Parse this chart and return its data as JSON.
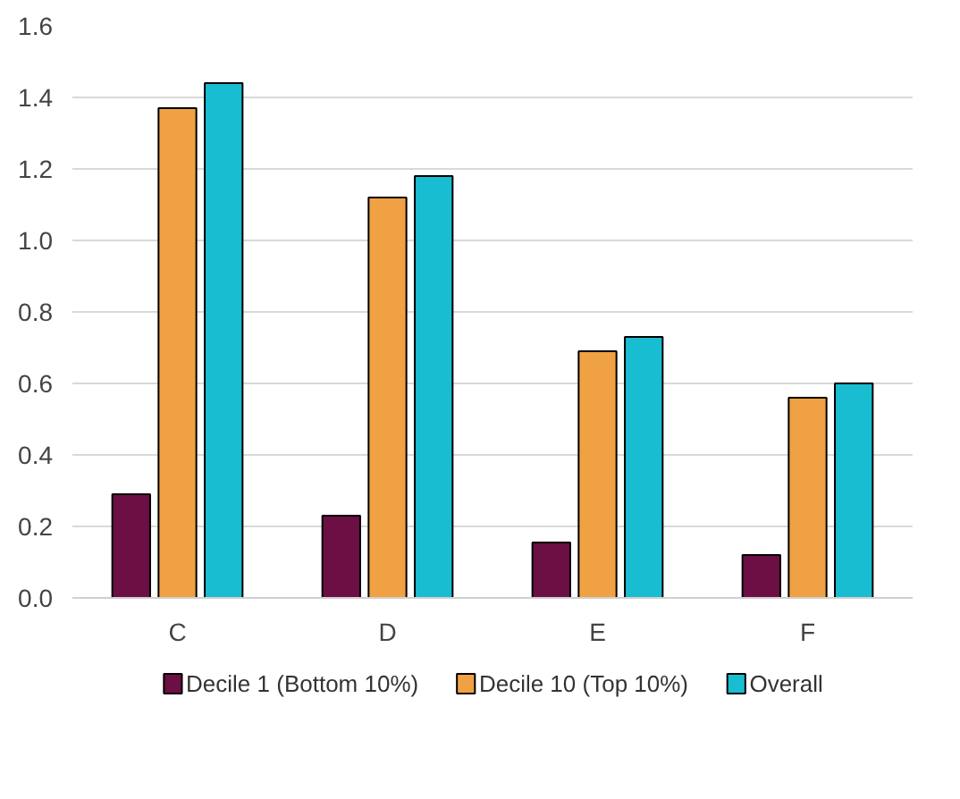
{
  "chart_data": {
    "type": "bar",
    "categories": [
      "C",
      "D",
      "E",
      "F"
    ],
    "series": [
      {
        "name": "Decile 1 (Bottom 10%)",
        "color": "#6b0f45",
        "values": [
          0.29,
          0.23,
          0.155,
          0.12
        ]
      },
      {
        "name": "Decile 10 (Top 10%)",
        "color": "#f0a143",
        "values": [
          1.37,
          1.12,
          0.69,
          0.56
        ]
      },
      {
        "name": "Overall",
        "color": "#19bdd1",
        "values": [
          1.44,
          1.18,
          0.73,
          0.6
        ]
      }
    ],
    "ylim": [
      0,
      1.6
    ],
    "yticks": [
      {
        "value": 0,
        "label": "0.0"
      },
      {
        "value": 0.2,
        "label": "0.2"
      },
      {
        "value": 0.4,
        "label": "0.4"
      },
      {
        "value": 0.6,
        "label": "0.6"
      },
      {
        "value": 0.8,
        "label": "0.8"
      },
      {
        "value": 1.0,
        "label": "1.0"
      },
      {
        "value": 1.2,
        "label": "1.2"
      },
      {
        "value": 1.4,
        "label": "1.4"
      },
      {
        "value": 1.6,
        "label": "1.6"
      }
    ],
    "grid": "y",
    "legend": "bottom"
  }
}
